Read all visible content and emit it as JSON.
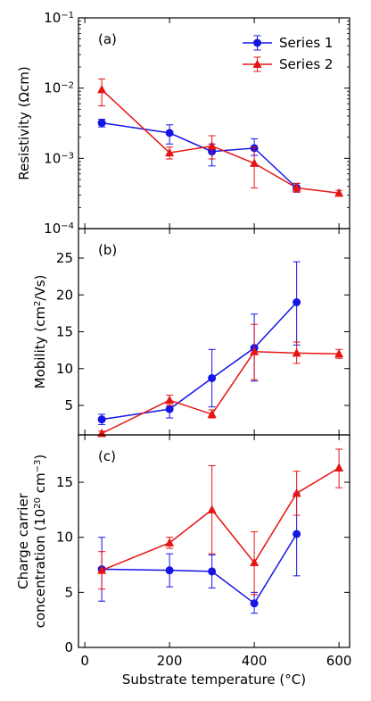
{
  "chart_data": {
    "type": "line",
    "x": [
      40,
      200,
      300,
      400,
      500,
      600
    ],
    "xlabel": "Substrate temperature (°C)",
    "xlim": [
      -15,
      625
    ],
    "xticks": [
      0,
      200,
      400,
      600
    ],
    "xtick_labels": [
      "0",
      "200",
      "400",
      "600"
    ],
    "colors": {
      "series1": "#1515e6",
      "series2": "#e61515"
    },
    "legend": {
      "placement": "top-right",
      "entries": [
        "Series 1",
        "Series 2"
      ]
    },
    "panels": [
      {
        "label": "(a)",
        "ylabel": "Resistivity (Ωcm)",
        "yscale": "log",
        "ylim": [
          0.0001,
          0.1
        ],
        "ytick_labels": [
          {
            "base": "10",
            "exp": "−1",
            "value": 0.1
          },
          {
            "base": "10",
            "exp": "−2",
            "value": 0.01
          },
          {
            "base": "10",
            "exp": "−3",
            "value": 0.001
          },
          {
            "base": "10",
            "exp": "−4",
            "value": 0.0001
          }
        ],
        "series": [
          {
            "name": "Series 1",
            "marker": "circle",
            "x": [
              40,
              200,
              300,
              400,
              500
            ],
            "values": [
              0.0032,
              0.0023,
              0.00125,
              0.0014,
              0.00038
            ],
            "err_low": [
              0.0028,
              0.0016,
              0.00078,
              0.0011,
              0.00033
            ],
            "err_high": [
              0.0036,
              0.003,
              0.0016,
              0.0019,
              0.00044
            ]
          },
          {
            "name": "Series 2",
            "marker": "triangle",
            "x": [
              40,
              200,
              300,
              400,
              500,
              600
            ],
            "values": [
              0.0095,
              0.0012,
              0.0015,
              0.00085,
              0.00038,
              0.00032
            ],
            "err_low": [
              0.0056,
              0.00098,
              0.00098,
              0.00038,
              0.00033,
              0.00029
            ],
            "err_high": [
              0.0135,
              0.00145,
              0.0021,
              0.00145,
              0.00044,
              0.00035
            ]
          }
        ]
      },
      {
        "label": "(b)",
        "ylabel": "Mobility (cm²/Vs)",
        "ylabel_parts": [
          "Mobility (cm",
          "2",
          "/Vs)"
        ],
        "ylim": [
          1,
          29
        ],
        "yticks": [
          5,
          10,
          15,
          20,
          25
        ],
        "series": [
          {
            "name": "Series 1",
            "marker": "circle",
            "x": [
              40,
              200,
              300,
              400,
              500
            ],
            "values": [
              3.1,
              4.5,
              8.7,
              12.8,
              19.0
            ],
            "err_low": [
              2.4,
              3.3,
              4.8,
              8.3,
              13.2
            ],
            "err_high": [
              3.8,
              5.5,
              12.6,
              17.4,
              24.5
            ]
          },
          {
            "name": "Series 2",
            "marker": "triangle",
            "x": [
              40,
              200,
              300,
              400,
              500,
              600
            ],
            "values": [
              1.2,
              5.7,
              3.8,
              12.3,
              12.1,
              12.0
            ],
            "err_low": [
              0.9,
              5.0,
              3.3,
              8.5,
              10.7,
              11.4
            ],
            "err_high": [
              1.5,
              6.4,
              4.4,
              16.0,
              13.6,
              12.6
            ]
          }
        ]
      },
      {
        "label": "(c)",
        "ylabel_line1": "Charge carrier",
        "ylabel_line2_parts": [
          "concentration (10",
          "20",
          " cm",
          "−3",
          ")"
        ],
        "ylim": [
          0,
          19.3
        ],
        "yticks": [
          0,
          5,
          10,
          15
        ],
        "series": [
          {
            "name": "Series 1",
            "marker": "circle",
            "x": [
              40,
              200,
              300,
              400,
              500
            ],
            "values": [
              7.1,
              7.0,
              6.9,
              4.0,
              10.3
            ],
            "err_low": [
              4.2,
              5.5,
              5.4,
              3.1,
              6.5
            ],
            "err_high": [
              10.0,
              8.5,
              8.4,
              5.0,
              14.0
            ]
          },
          {
            "name": "Series 2",
            "marker": "triangle",
            "x": [
              40,
              200,
              300,
              400,
              500,
              600
            ],
            "values": [
              7.0,
              9.5,
              12.5,
              7.7,
              14.0,
              16.3
            ],
            "err_low": [
              5.3,
              9.0,
              8.5,
              4.8,
              12.0,
              14.5
            ],
            "err_high": [
              8.7,
              10.0,
              16.5,
              10.5,
              16.0,
              18.0
            ]
          }
        ]
      }
    ]
  }
}
